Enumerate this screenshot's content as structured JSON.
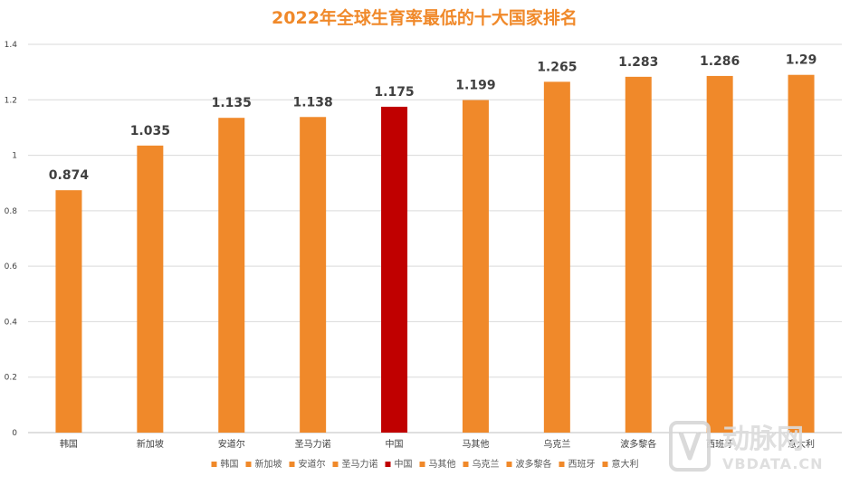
{
  "chart_data": {
    "type": "bar",
    "title": "2022年全球生育率最低的十大国家排名",
    "categories": [
      "韩国",
      "新加坡",
      "安道尔",
      "圣马力诺",
      "中国",
      "马其他",
      "乌克兰",
      "波多黎各",
      "西班牙",
      "意大利"
    ],
    "values": [
      0.874,
      1.035,
      1.135,
      1.138,
      1.175,
      1.199,
      1.265,
      1.283,
      1.286,
      1.29
    ],
    "data_labels": [
      "0.874",
      "1.035",
      "1.135",
      "1.138",
      "1.175",
      "1.199",
      "1.265",
      "1.283",
      "1.286",
      "1.29"
    ],
    "colors": [
      "#f0892a",
      "#f0892a",
      "#f0892a",
      "#f0892a",
      "#c00000",
      "#f0892a",
      "#f0892a",
      "#f0892a",
      "#f0892a",
      "#f0892a"
    ],
    "ylim": [
      0,
      1.4
    ],
    "yticks": [
      0,
      0.2,
      0.4,
      0.6,
      0.8,
      1,
      1.2,
      1.4
    ],
    "ytick_labels": [
      "0",
      "0.2",
      "0.4",
      "0.6",
      "0.8",
      "1",
      "1.2",
      "1.4"
    ],
    "grid": true,
    "legend": {
      "position": "bottom",
      "entries": [
        "韩国",
        "新加坡",
        "安道尔",
        "圣马力诺",
        "中国",
        "马其他",
        "乌克兰",
        "波多黎各",
        "西班牙",
        "意大利"
      ]
    },
    "xlabel": "",
    "ylabel": ""
  },
  "watermark": {
    "logo_text": "动脉网",
    "sub_text": "VBDATA.CN"
  }
}
